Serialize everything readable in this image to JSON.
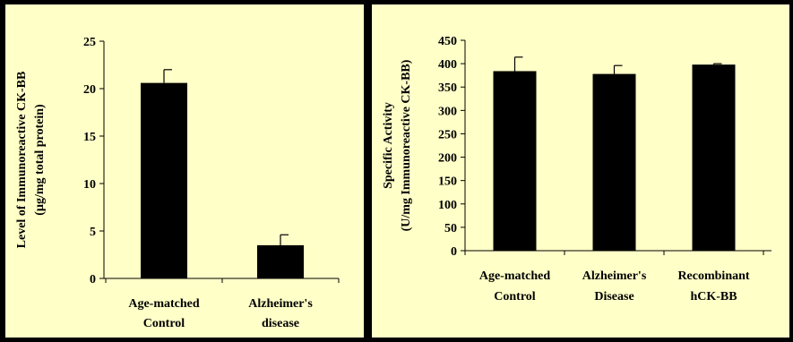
{
  "chart_data": [
    {
      "type": "bar",
      "categories": [
        [
          "Age-matched",
          "Control"
        ],
        [
          "Alzheimer's",
          "disease"
        ]
      ],
      "values": [
        20.6,
        3.5
      ],
      "errors": [
        1.4,
        1.1
      ],
      "ylabel": [
        "Level of Immunoreactive CK-BB",
        "(µg/mg total protein)"
      ],
      "ylim": [
        0,
        25
      ],
      "yticks": [
        0,
        5,
        10,
        15,
        20,
        25
      ],
      "grid": false,
      "bar_color": "#000000",
      "background": "#ffffc8"
    },
    {
      "type": "bar",
      "categories": [
        [
          "Age-matched",
          "Control"
        ],
        [
          "Alzheimer's",
          "Disease"
        ],
        [
          "Recombinant",
          "hCK-BB"
        ]
      ],
      "values": [
        384,
        378,
        398
      ],
      "errors": [
        30,
        18,
        2
      ],
      "ylabel": [
        "Specific Activity",
        "(U/mg Immunoreactive CK-BB)"
      ],
      "ylim": [
        0,
        450
      ],
      "yticks": [
        0,
        50,
        100,
        150,
        200,
        250,
        300,
        350,
        400,
        450
      ],
      "grid": false,
      "bar_color": "#000000",
      "background": "#ffffc8"
    }
  ]
}
